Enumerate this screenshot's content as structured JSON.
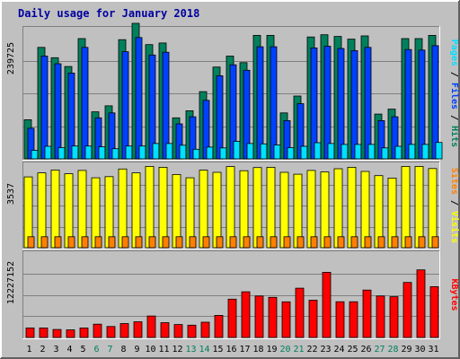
{
  "chart_data": {
    "type": "bar",
    "title": "Daily usage for January 2018",
    "x": [
      "1",
      "2",
      "3",
      "4",
      "5",
      "6",
      "7",
      "8",
      "9",
      "10",
      "11",
      "12",
      "13",
      "14",
      "15",
      "16",
      "17",
      "18",
      "19",
      "20",
      "21",
      "22",
      "23",
      "24",
      "25",
      "26",
      "27",
      "28",
      "29",
      "30",
      "31"
    ],
    "weekend_days": [
      "6",
      "7",
      "13",
      "14",
      "20",
      "21",
      "27",
      "28"
    ],
    "colors": {
      "background": "#c0c0c0",
      "hits": "#00805c",
      "files": "#0040ff",
      "pages": "#00e0ff",
      "visits": "#ffff00",
      "sites": "#ff8000",
      "kbytes": "#ff0000",
      "weekday_label": "#000000",
      "weekend_label": "#00805c",
      "title": "#0000a0"
    },
    "panels": [
      {
        "name": "hits-files-pages",
        "ymax_label": "239725",
        "ymax": 239725,
        "series": [
          {
            "name": "Hits",
            "color": "#00805c",
            "values": [
              71600,
              204000,
              185000,
              169000,
              220000,
              86000,
              97000,
              218000,
              248000,
              209000,
              212000,
              75000,
              88000,
              123000,
              168000,
              188000,
              176000,
              226000,
              226000,
              84000,
              115000,
              223000,
              227000,
              224000,
              219000,
              225000,
              82000,
              91000,
              220000,
              220000,
              226000
            ]
          },
          {
            "name": "Files",
            "color": "#0040ff",
            "values": [
              56000,
              188000,
              174000,
              157000,
              204000,
              75000,
              84000,
              196000,
              222000,
              190000,
              195000,
              64000,
              77000,
              107000,
              152000,
              172000,
              162000,
              205000,
              205000,
              70000,
              101000,
              203000,
              206000,
              202000,
              198000,
              204000,
              70000,
              77000,
              200000,
              199000,
              207000
            ]
          },
          {
            "name": "Pages",
            "color": "#00e0ff",
            "values": [
              15600,
              23000,
              20500,
              23500,
              23500,
              22000,
              18500,
              23500,
              23500,
              28000,
              28000,
              25000,
              17500,
              21500,
              20000,
              32000,
              28000,
              27500,
              25500,
              20500,
              23000,
              29500,
              28000,
              26500,
              26500,
              26500,
              20000,
              23000,
              26500,
              26500,
              30000
            ]
          }
        ]
      },
      {
        "name": "visits-sites",
        "ymax_label": "3537",
        "ymax": 3537,
        "series": [
          {
            "name": "Visits",
            "color": "#ffff00",
            "values": [
              2970,
              3140,
              3260,
              3100,
              3240,
              2930,
              2980,
              3300,
              3140,
              3410,
              3370,
              3070,
              2930,
              3250,
              3160,
              3400,
              3230,
              3360,
              3370,
              3160,
              3080,
              3240,
              3180,
              3310,
              3370,
              3200,
              3020,
              2920,
              3410,
              3410,
              3320
            ]
          },
          {
            "name": "Sites",
            "color": "#ff8000",
            "values": [
              460,
              460,
              460,
              460,
              460,
              460,
              460,
              460,
              460,
              460,
              460,
              460,
              460,
              460,
              460,
              460,
              460,
              460,
              460,
              460,
              460,
              460,
              460,
              460,
              460,
              460,
              460,
              460,
              460,
              460,
              460
            ]
          }
        ]
      },
      {
        "name": "kbytes",
        "ymax_label": "12227152",
        "ymax": 12227152,
        "series": [
          {
            "name": "KBytes",
            "color": "#ff0000",
            "values": [
              1360000,
              1360000,
              1150000,
              1100000,
              1360000,
              1900000,
              1570000,
              2000000,
              2250000,
              3070000,
              2120000,
              1850000,
              1760000,
              2190000,
              3170000,
              5490000,
              6550000,
              5950000,
              5750000,
              5110000,
              7060000,
              5340000,
              9350000,
              5120000,
              5120000,
              6800000,
              5950000,
              5840000,
              7890000,
              9690000,
              7280000
            ]
          }
        ]
      }
    ],
    "side_labels": [
      {
        "panel": "hits-files-pages",
        "parts": [
          {
            "text": "Pages",
            "color": "#00e0ff"
          },
          {
            "text": " / ",
            "color": "#000000"
          },
          {
            "text": "Files",
            "color": "#0040ff"
          },
          {
            "text": " / ",
            "color": "#000000"
          },
          {
            "text": "Hits",
            "color": "#00805c"
          }
        ]
      },
      {
        "panel": "visits-sites",
        "parts": [
          {
            "text": "Sites",
            "color": "#ff8000"
          },
          {
            "text": " / ",
            "color": "#000000"
          },
          {
            "text": "Visits",
            "color": "#ffff00"
          }
        ]
      },
      {
        "panel": "kbytes",
        "parts": [
          {
            "text": "KBytes",
            "color": "#ff0000"
          }
        ]
      }
    ]
  }
}
